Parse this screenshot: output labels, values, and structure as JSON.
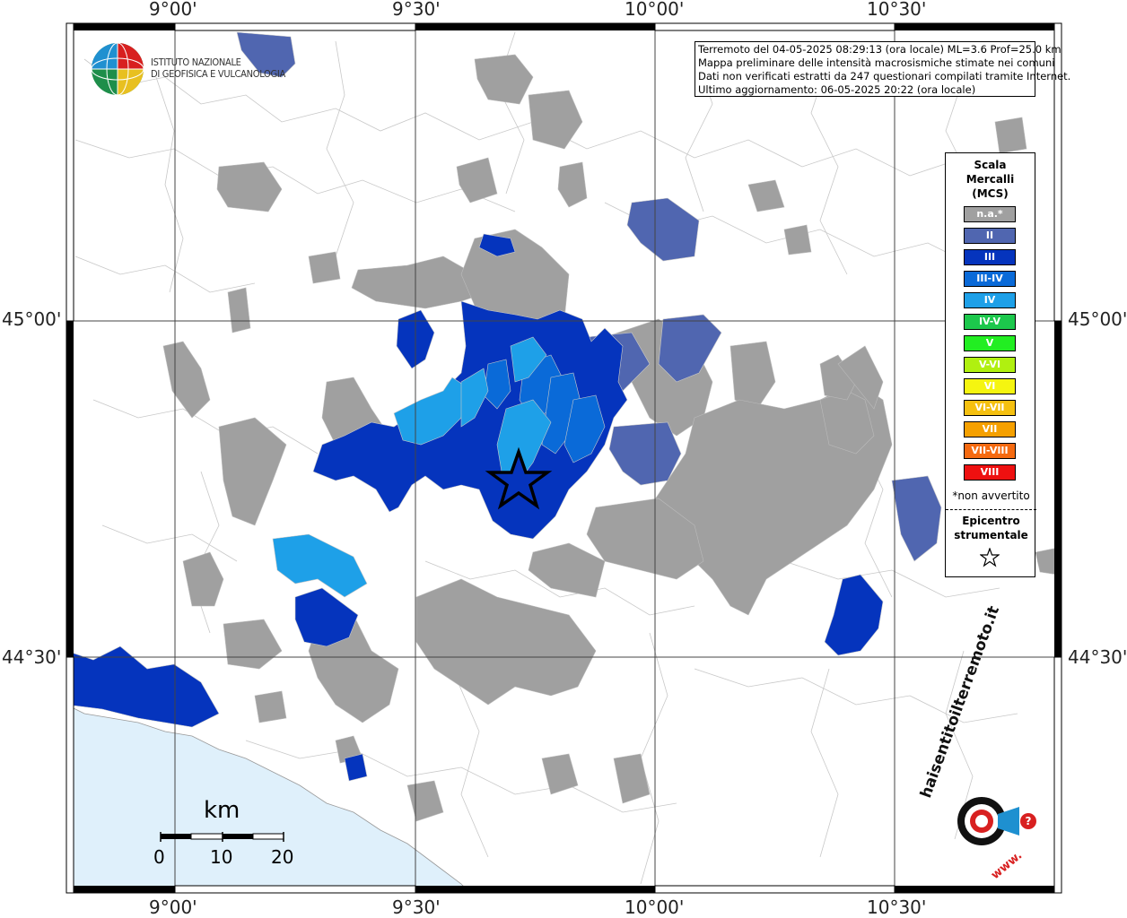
{
  "header": {
    "line1": "Terremoto del 04-05-2025 08:29:13 (ora locale) ML=3.6 Prof=25.0 km",
    "line2": "Mappa preliminare delle intensità macrosismiche stimate nei comuni",
    "line3": "Dati non verificati estratti da 247 questionari compilati tramite Internet.",
    "line4": "Ultimo aggiornamento: 06-05-2025 20:22 (ora locale)"
  },
  "institute": {
    "line1": "ISTITUTO NAZIONALE",
    "line2": "DI GEOFISICA E VULCANOLOGIA"
  },
  "axes": {
    "top": [
      "9°00'",
      "9°30'",
      "10°00'",
      "10°30'"
    ],
    "bottom": [
      "9°00'",
      "9°30'",
      "10°00'",
      "10°30'"
    ],
    "left": [
      "45°00'",
      "44°30'"
    ],
    "right": [
      "45°00'",
      "44°30'"
    ]
  },
  "legend": {
    "title_line1": "Scala",
    "title_line2": "Mercalli",
    "title_line3": "(MCS)",
    "items": [
      {
        "label": "n.a.*",
        "color": "#a0a0a0"
      },
      {
        "label": "II",
        "color": "#5066b0"
      },
      {
        "label": "III",
        "color": "#0534bd"
      },
      {
        "label": "III-IV",
        "color": "#0a6ad8"
      },
      {
        "label": "IV",
        "color": "#1ea0e8"
      },
      {
        "label": "IV-V",
        "color": "#1cc84c"
      },
      {
        "label": "V",
        "color": "#22ee22"
      },
      {
        "label": "V-VI",
        "color": "#b0f010"
      },
      {
        "label": "VI",
        "color": "#f5f510"
      },
      {
        "label": "VI-VII",
        "color": "#f5c010"
      },
      {
        "label": "VII",
        "color": "#f5a000"
      },
      {
        "label": "VII-VIII",
        "color": "#f56a10"
      },
      {
        "label": "VIII",
        "color": "#ee1010"
      }
    ],
    "note": "*non avvertito",
    "epicenter_line1": "Epicentro",
    "epicenter_line2": "strumentale"
  },
  "scalebar": {
    "unit": "km",
    "ticks": [
      "0",
      "10",
      "20"
    ]
  },
  "logo_text": {
    "text": "haisentitoilterremoto.it",
    "www": "www."
  },
  "colors": {
    "sea": "#dff0fb",
    "gray": "#a0a0a0",
    "ii": "#5066b0",
    "iii": "#0534bd",
    "iii_iv": "#0a6ad8",
    "iv": "#1ea0e8"
  }
}
